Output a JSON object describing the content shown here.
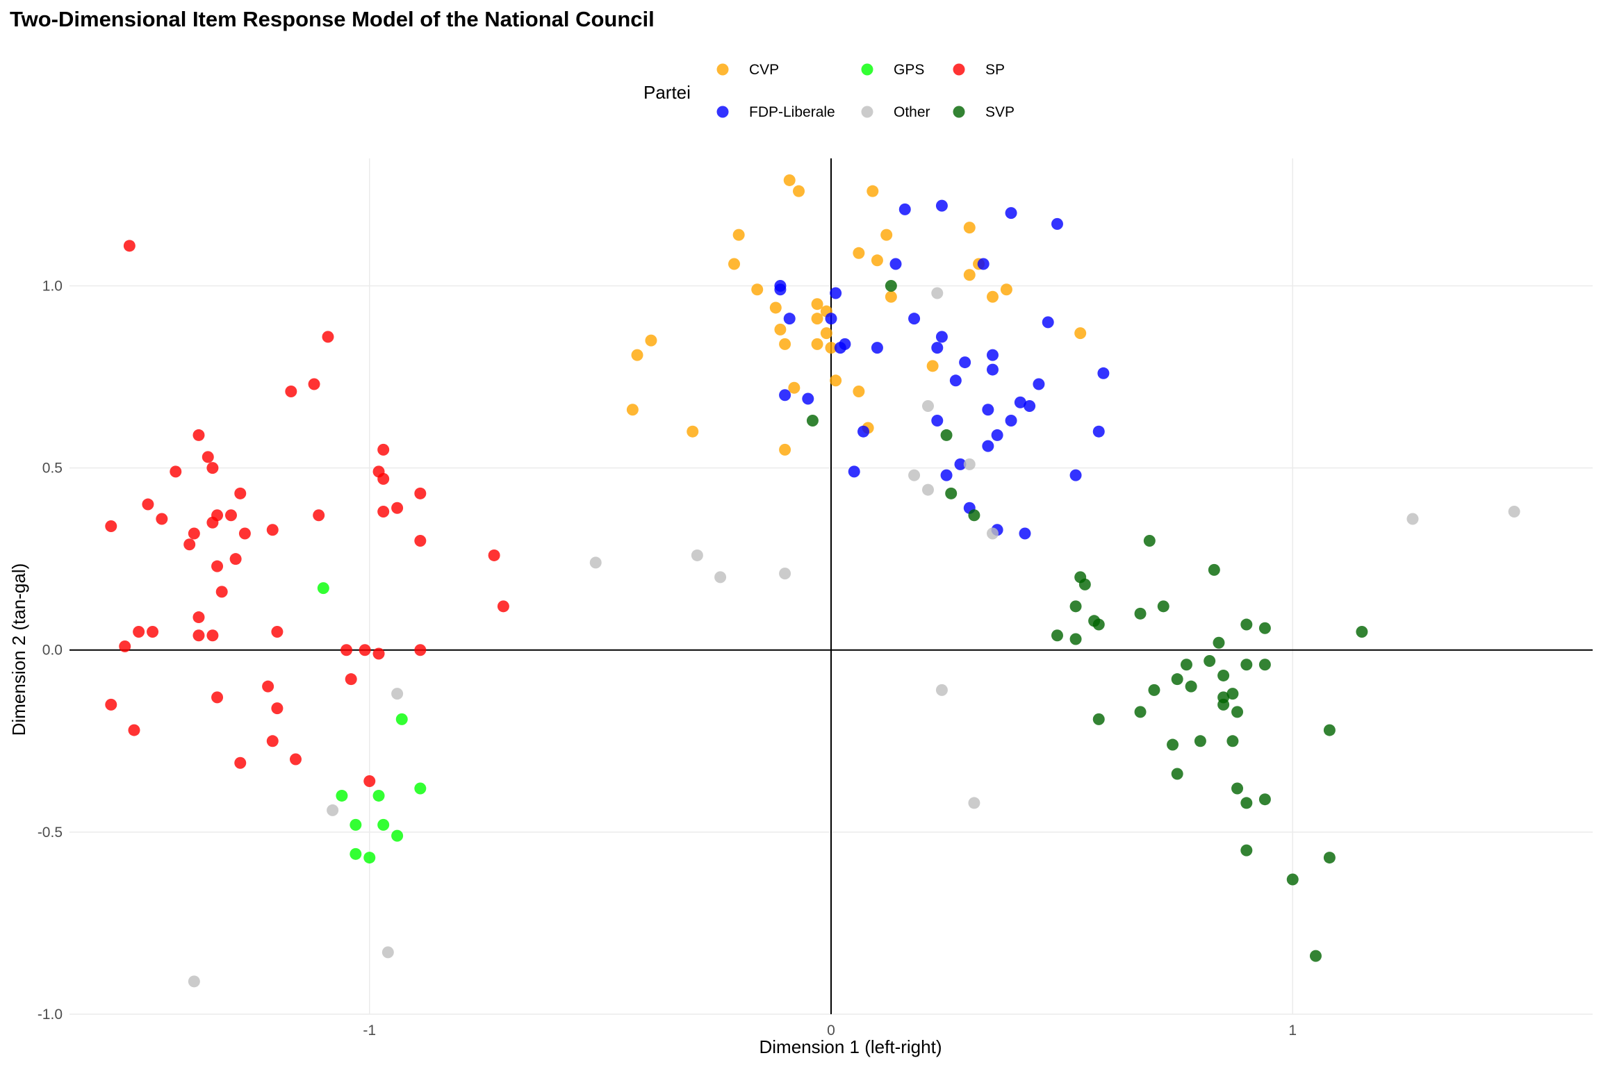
{
  "chart_data": {
    "type": "scatter",
    "title": "Two-Dimensional Item Response Model of the National Council",
    "xlabel": "Dimension 1 (left-right)",
    "ylabel": "Dimension 2 (tan-gal)",
    "xlim": [
      -1.65,
      1.65
    ],
    "ylim": [
      -1.0,
      1.35
    ],
    "xticks": [
      -1,
      0,
      1
    ],
    "yticks": [
      -1.0,
      -0.5,
      0.0,
      0.5,
      1.0
    ],
    "xtick_labels": [
      "-1",
      "0",
      "1"
    ],
    "ytick_labels": [
      "-1.0",
      "-0.5",
      "0.0",
      "0.5",
      "1.0"
    ],
    "grid": true,
    "reference_lines": {
      "x": 0,
      "y": 0
    },
    "legend": {
      "title": "Partei",
      "position": "top"
    },
    "series": [
      {
        "name": "CVP",
        "color": "#FFA500",
        "points": [
          [
            -0.09,
            1.29
          ],
          [
            -0.07,
            1.26
          ],
          [
            0.09,
            1.26
          ],
          [
            0.12,
            1.14
          ],
          [
            -0.2,
            1.14
          ],
          [
            -0.21,
            1.06
          ],
          [
            0.06,
            1.09
          ],
          [
            0.1,
            1.07
          ],
          [
            0.3,
            1.16
          ],
          [
            0.32,
            1.06
          ],
          [
            0.3,
            1.03
          ],
          [
            0.38,
            0.99
          ],
          [
            0.35,
            0.97
          ],
          [
            0.13,
            0.97
          ],
          [
            -0.16,
            0.99
          ],
          [
            -0.12,
            0.94
          ],
          [
            -0.03,
            0.95
          ],
          [
            -0.01,
            0.93
          ],
          [
            -0.03,
            0.91
          ],
          [
            -0.11,
            0.88
          ],
          [
            -0.01,
            0.87
          ],
          [
            -0.1,
            0.84
          ],
          [
            -0.03,
            0.84
          ],
          [
            0.0,
            0.83
          ],
          [
            -0.39,
            0.85
          ],
          [
            -0.42,
            0.81
          ],
          [
            0.54,
            0.87
          ],
          [
            0.22,
            0.78
          ],
          [
            0.01,
            0.74
          ],
          [
            -0.08,
            0.72
          ],
          [
            0.06,
            0.71
          ],
          [
            -0.43,
            0.66
          ],
          [
            -0.3,
            0.6
          ],
          [
            0.08,
            0.61
          ],
          [
            -0.1,
            0.55
          ]
        ]
      },
      {
        "name": "FDP-Liberale",
        "color": "#0000FF",
        "points": [
          [
            0.16,
            1.21
          ],
          [
            0.24,
            1.22
          ],
          [
            0.39,
            1.2
          ],
          [
            0.49,
            1.17
          ],
          [
            0.14,
            1.06
          ],
          [
            0.33,
            1.06
          ],
          [
            -0.11,
            1.0
          ],
          [
            -0.11,
            0.99
          ],
          [
            0.01,
            0.98
          ],
          [
            -0.09,
            0.91
          ],
          [
            0.0,
            0.91
          ],
          [
            0.18,
            0.91
          ],
          [
            0.47,
            0.9
          ],
          [
            0.24,
            0.86
          ],
          [
            0.23,
            0.83
          ],
          [
            0.03,
            0.84
          ],
          [
            0.1,
            0.83
          ],
          [
            0.02,
            0.83
          ],
          [
            0.29,
            0.79
          ],
          [
            0.35,
            0.81
          ],
          [
            0.35,
            0.77
          ],
          [
            0.59,
            0.76
          ],
          [
            0.27,
            0.74
          ],
          [
            0.45,
            0.73
          ],
          [
            -0.1,
            0.7
          ],
          [
            -0.05,
            0.69
          ],
          [
            0.41,
            0.68
          ],
          [
            0.43,
            0.67
          ],
          [
            0.34,
            0.66
          ],
          [
            0.39,
            0.63
          ],
          [
            0.23,
            0.63
          ],
          [
            0.36,
            0.59
          ],
          [
            0.07,
            0.6
          ],
          [
            0.58,
            0.6
          ],
          [
            0.34,
            0.56
          ],
          [
            0.28,
            0.51
          ],
          [
            0.05,
            0.49
          ],
          [
            0.25,
            0.48
          ],
          [
            0.53,
            0.48
          ],
          [
            0.3,
            0.39
          ],
          [
            0.36,
            0.33
          ],
          [
            0.42,
            0.32
          ]
        ]
      },
      {
        "name": "GPS",
        "color": "#00FF00",
        "points": [
          [
            -1.1,
            0.17
          ],
          [
            -0.93,
            -0.19
          ],
          [
            -0.89,
            -0.38
          ],
          [
            -1.06,
            -0.4
          ],
          [
            -0.98,
            -0.4
          ],
          [
            -1.03,
            -0.48
          ],
          [
            -0.97,
            -0.48
          ],
          [
            -0.94,
            -0.51
          ],
          [
            -1.03,
            -0.56
          ],
          [
            -1.0,
            -0.57
          ]
        ]
      },
      {
        "name": "Other",
        "color": "#BEBEBE",
        "points": [
          [
            0.23,
            0.98
          ],
          [
            0.21,
            0.67
          ],
          [
            0.18,
            0.48
          ],
          [
            0.21,
            0.44
          ],
          [
            0.3,
            0.51
          ],
          [
            0.35,
            0.32
          ],
          [
            -0.51,
            0.24
          ],
          [
            -0.29,
            0.26
          ],
          [
            -0.24,
            0.2
          ],
          [
            -0.1,
            0.21
          ],
          [
            1.26,
            0.36
          ],
          [
            1.48,
            0.38
          ],
          [
            -0.94,
            -0.12
          ],
          [
            0.24,
            -0.11
          ],
          [
            -1.08,
            -0.44
          ],
          [
            0.31,
            -0.42
          ],
          [
            -0.96,
            -0.83
          ],
          [
            -1.38,
            -0.91
          ]
        ]
      },
      {
        "name": "SP",
        "color": "#FF0000",
        "points": [
          [
            -1.52,
            1.11
          ],
          [
            -1.09,
            0.86
          ],
          [
            -1.12,
            0.73
          ],
          [
            -1.17,
            0.71
          ],
          [
            -1.37,
            0.59
          ],
          [
            -1.35,
            0.53
          ],
          [
            -1.34,
            0.5
          ],
          [
            -1.42,
            0.49
          ],
          [
            -0.97,
            0.55
          ],
          [
            -0.98,
            0.49
          ],
          [
            -0.97,
            0.47
          ],
          [
            -1.48,
            0.4
          ],
          [
            -1.45,
            0.36
          ],
          [
            -1.28,
            0.43
          ],
          [
            -1.11,
            0.37
          ],
          [
            -0.97,
            0.38
          ],
          [
            -0.94,
            0.39
          ],
          [
            -0.89,
            0.43
          ],
          [
            -1.33,
            0.37
          ],
          [
            -1.3,
            0.37
          ],
          [
            -1.34,
            0.35
          ],
          [
            -1.38,
            0.32
          ],
          [
            -1.39,
            0.29
          ],
          [
            -1.27,
            0.32
          ],
          [
            -1.21,
            0.33
          ],
          [
            -1.56,
            0.34
          ],
          [
            -0.89,
            0.3
          ],
          [
            -0.73,
            0.26
          ],
          [
            -1.29,
            0.25
          ],
          [
            -1.33,
            0.23
          ],
          [
            -1.32,
            0.16
          ],
          [
            -0.71,
            0.12
          ],
          [
            -1.37,
            0.09
          ],
          [
            -1.5,
            0.05
          ],
          [
            -1.47,
            0.05
          ],
          [
            -1.2,
            0.05
          ],
          [
            -1.37,
            0.04
          ],
          [
            -1.34,
            0.04
          ],
          [
            -1.53,
            0.01
          ],
          [
            -1.05,
            0.0
          ],
          [
            -1.01,
            0.0
          ],
          [
            -0.98,
            -0.01
          ],
          [
            -0.89,
            0.0
          ],
          [
            -1.04,
            -0.08
          ],
          [
            -1.22,
            -0.1
          ],
          [
            -1.33,
            -0.13
          ],
          [
            -1.56,
            -0.15
          ],
          [
            -1.2,
            -0.16
          ],
          [
            -1.51,
            -0.22
          ],
          [
            -1.21,
            -0.25
          ],
          [
            -1.16,
            -0.3
          ],
          [
            -1.28,
            -0.31
          ],
          [
            -1.0,
            -0.36
          ]
        ]
      },
      {
        "name": "SVP",
        "color": "#006400",
        "points": [
          [
            0.13,
            1.0
          ],
          [
            -0.04,
            0.63
          ],
          [
            0.25,
            0.59
          ],
          [
            0.26,
            0.43
          ],
          [
            0.31,
            0.37
          ],
          [
            0.69,
            0.3
          ],
          [
            0.83,
            0.22
          ],
          [
            0.54,
            0.2
          ],
          [
            0.55,
            0.18
          ],
          [
            0.72,
            0.12
          ],
          [
            0.53,
            0.12
          ],
          [
            0.67,
            0.1
          ],
          [
            0.57,
            0.08
          ],
          [
            0.58,
            0.07
          ],
          [
            0.9,
            0.07
          ],
          [
            0.94,
            0.06
          ],
          [
            1.15,
            0.05
          ],
          [
            0.49,
            0.04
          ],
          [
            0.53,
            0.03
          ],
          [
            0.84,
            0.02
          ],
          [
            0.82,
            -0.03
          ],
          [
            0.77,
            -0.04
          ],
          [
            0.9,
            -0.04
          ],
          [
            0.94,
            -0.04
          ],
          [
            0.85,
            -0.07
          ],
          [
            0.75,
            -0.08
          ],
          [
            0.78,
            -0.1
          ],
          [
            0.7,
            -0.11
          ],
          [
            0.87,
            -0.12
          ],
          [
            0.85,
            -0.13
          ],
          [
            0.85,
            -0.15
          ],
          [
            0.67,
            -0.17
          ],
          [
            0.88,
            -0.17
          ],
          [
            0.58,
            -0.19
          ],
          [
            1.08,
            -0.22
          ],
          [
            0.8,
            -0.25
          ],
          [
            0.87,
            -0.25
          ],
          [
            0.74,
            -0.26
          ],
          [
            0.75,
            -0.34
          ],
          [
            0.88,
            -0.38
          ],
          [
            0.9,
            -0.42
          ],
          [
            0.94,
            -0.41
          ],
          [
            0.9,
            -0.55
          ],
          [
            1.08,
            -0.57
          ],
          [
            1.0,
            -0.63
          ],
          [
            1.05,
            -0.84
          ]
        ]
      }
    ]
  }
}
